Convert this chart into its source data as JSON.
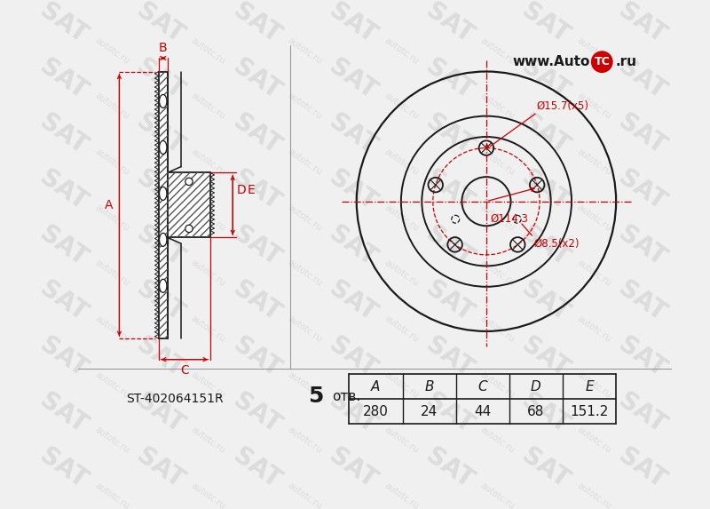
{
  "bg_color": "#f0f0f0",
  "line_color": "#1a1a1a",
  "red_color": "#cc0000",
  "part_number": "ST-402064151R",
  "holes_label": "5 отв.",
  "table_headers": [
    "A",
    "B",
    "C",
    "D",
    "E"
  ],
  "table_values": [
    "280",
    "24",
    "44",
    "68",
    "151.2"
  ],
  "dim_bolt_circle": "Ø114.3",
  "dim_bolt_hole": "Ø15.7(x5)",
  "dim_small_hole": "Ø8.5(x2)",
  "dim_A": "A",
  "dim_B": "B",
  "dim_C": "C",
  "dim_D": "D",
  "dim_E": "E",
  "website_text": "www.Auto",
  "website_tc": "TC",
  "website_ru": ".ru"
}
